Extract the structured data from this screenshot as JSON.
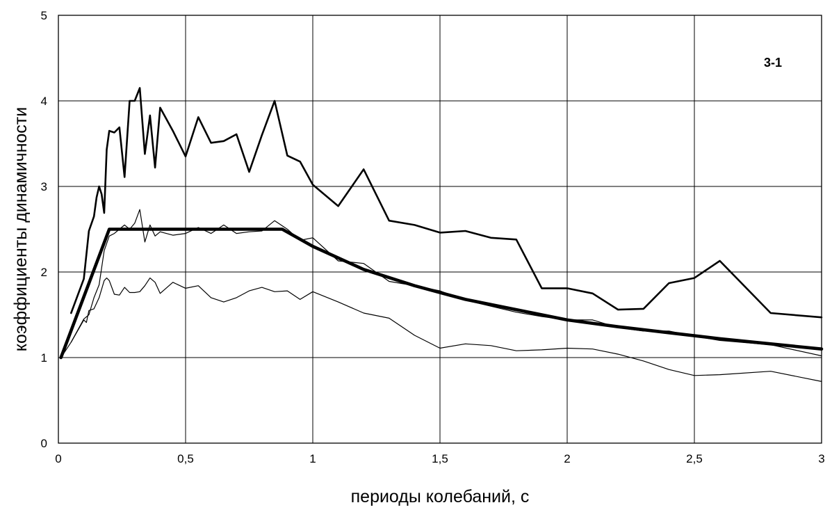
{
  "chart_data": {
    "type": "line",
    "xlabel": "периоды колебаний, с",
    "ylabel": "коэффициенты динамичности",
    "annotation": "3-1",
    "xlim": [
      0,
      3
    ],
    "ylim": [
      0,
      5
    ],
    "x_ticks": [
      {
        "value": 0,
        "label": "0"
      },
      {
        "value": 0.5,
        "label": "0,5"
      },
      {
        "value": 1,
        "label": "1"
      },
      {
        "value": 1.5,
        "label": "1,5"
      },
      {
        "value": 2,
        "label": "2"
      },
      {
        "value": 2.5,
        "label": "2,5"
      },
      {
        "value": 3,
        "label": "3"
      }
    ],
    "y_ticks": [
      {
        "value": 0,
        "label": "0"
      },
      {
        "value": 1,
        "label": "1"
      },
      {
        "value": 2,
        "label": "2"
      },
      {
        "value": 3,
        "label": "3"
      },
      {
        "value": 4,
        "label": "4"
      },
      {
        "value": 5,
        "label": "5"
      }
    ],
    "grid": true,
    "line_color": "#000000",
    "series": [
      {
        "style": "upper",
        "points": [
          [
            0.05,
            1.52
          ],
          [
            0.1,
            1.92
          ],
          [
            0.12,
            2.48
          ],
          [
            0.14,
            2.65
          ],
          [
            0.15,
            2.87
          ],
          [
            0.16,
            3.0
          ],
          [
            0.17,
            2.91
          ],
          [
            0.18,
            2.69
          ],
          [
            0.19,
            3.43
          ],
          [
            0.2,
            3.65
          ],
          [
            0.22,
            3.63
          ],
          [
            0.24,
            3.69
          ],
          [
            0.26,
            3.11
          ],
          [
            0.28,
            4.0
          ],
          [
            0.3,
            4.0
          ],
          [
            0.32,
            4.15
          ],
          [
            0.34,
            3.38
          ],
          [
            0.36,
            3.83
          ],
          [
            0.38,
            3.22
          ],
          [
            0.4,
            3.92
          ],
          [
            0.45,
            3.65
          ],
          [
            0.5,
            3.35
          ],
          [
            0.55,
            3.81
          ],
          [
            0.6,
            3.51
          ],
          [
            0.65,
            3.53
          ],
          [
            0.7,
            3.61
          ],
          [
            0.75,
            3.17
          ],
          [
            0.8,
            3.6
          ],
          [
            0.85,
            4.0
          ],
          [
            0.9,
            3.36
          ],
          [
            0.95,
            3.29
          ],
          [
            1.0,
            3.02
          ],
          [
            1.1,
            2.77
          ],
          [
            1.2,
            3.2
          ],
          [
            1.3,
            2.6
          ],
          [
            1.4,
            2.55
          ],
          [
            1.5,
            2.46
          ],
          [
            1.6,
            2.48
          ],
          [
            1.7,
            2.4
          ],
          [
            1.8,
            2.38
          ],
          [
            1.9,
            1.81
          ],
          [
            2.0,
            1.81
          ],
          [
            2.1,
            1.75
          ],
          [
            2.2,
            1.56
          ],
          [
            2.3,
            1.57
          ],
          [
            2.4,
            1.87
          ],
          [
            2.5,
            1.93
          ],
          [
            2.6,
            2.13
          ],
          [
            2.8,
            1.52
          ],
          [
            3.0,
            1.47
          ]
        ]
      },
      {
        "style": "mean",
        "points": [
          [
            0.01,
            1.0
          ],
          [
            0.05,
            1.18
          ],
          [
            0.1,
            1.45
          ],
          [
            0.12,
            1.5
          ],
          [
            0.14,
            1.7
          ],
          [
            0.16,
            1.85
          ],
          [
            0.18,
            2.25
          ],
          [
            0.2,
            2.42
          ],
          [
            0.22,
            2.45
          ],
          [
            0.24,
            2.5
          ],
          [
            0.26,
            2.55
          ],
          [
            0.28,
            2.5
          ],
          [
            0.3,
            2.57
          ],
          [
            0.32,
            2.73
          ],
          [
            0.34,
            2.35
          ],
          [
            0.36,
            2.55
          ],
          [
            0.38,
            2.42
          ],
          [
            0.4,
            2.47
          ],
          [
            0.45,
            2.43
          ],
          [
            0.5,
            2.45
          ],
          [
            0.55,
            2.52
          ],
          [
            0.6,
            2.45
          ],
          [
            0.65,
            2.55
          ],
          [
            0.7,
            2.45
          ],
          [
            0.75,
            2.47
          ],
          [
            0.8,
            2.48
          ],
          [
            0.85,
            2.6
          ],
          [
            0.9,
            2.5
          ],
          [
            0.95,
            2.37
          ],
          [
            1.0,
            2.4
          ],
          [
            1.1,
            2.13
          ],
          [
            1.2,
            2.1
          ],
          [
            1.3,
            1.89
          ],
          [
            1.4,
            1.84
          ],
          [
            1.5,
            1.78
          ],
          [
            1.6,
            1.67
          ],
          [
            1.7,
            1.6
          ],
          [
            1.8,
            1.53
          ],
          [
            1.9,
            1.48
          ],
          [
            2.0,
            1.44
          ],
          [
            2.1,
            1.44
          ],
          [
            2.2,
            1.35
          ],
          [
            2.3,
            1.31
          ],
          [
            2.4,
            1.31
          ],
          [
            2.5,
            1.25
          ],
          [
            2.6,
            1.2
          ],
          [
            2.8,
            1.15
          ],
          [
            3.0,
            1.02
          ]
        ]
      },
      {
        "style": "lower",
        "points": [
          [
            0.05,
            1.18
          ],
          [
            0.1,
            1.44
          ],
          [
            0.11,
            1.41
          ],
          [
            0.12,
            1.55
          ],
          [
            0.14,
            1.57
          ],
          [
            0.16,
            1.7
          ],
          [
            0.18,
            1.9
          ],
          [
            0.19,
            1.93
          ],
          [
            0.2,
            1.9
          ],
          [
            0.22,
            1.74
          ],
          [
            0.24,
            1.73
          ],
          [
            0.26,
            1.82
          ],
          [
            0.28,
            1.76
          ],
          [
            0.3,
            1.76
          ],
          [
            0.32,
            1.77
          ],
          [
            0.34,
            1.84
          ],
          [
            0.36,
            1.93
          ],
          [
            0.38,
            1.88
          ],
          [
            0.4,
            1.75
          ],
          [
            0.45,
            1.88
          ],
          [
            0.5,
            1.81
          ],
          [
            0.55,
            1.84
          ],
          [
            0.6,
            1.7
          ],
          [
            0.65,
            1.65
          ],
          [
            0.7,
            1.7
          ],
          [
            0.75,
            1.78
          ],
          [
            0.8,
            1.82
          ],
          [
            0.85,
            1.77
          ],
          [
            0.9,
            1.78
          ],
          [
            0.95,
            1.68
          ],
          [
            1.0,
            1.77
          ],
          [
            1.1,
            1.65
          ],
          [
            1.2,
            1.52
          ],
          [
            1.3,
            1.46
          ],
          [
            1.4,
            1.26
          ],
          [
            1.5,
            1.11
          ],
          [
            1.6,
            1.16
          ],
          [
            1.7,
            1.14
          ],
          [
            1.8,
            1.08
          ],
          [
            1.9,
            1.09
          ],
          [
            2.0,
            1.11
          ],
          [
            2.1,
            1.1
          ],
          [
            2.2,
            1.04
          ],
          [
            2.3,
            0.96
          ],
          [
            2.4,
            0.86
          ],
          [
            2.5,
            0.79
          ],
          [
            2.6,
            0.8
          ],
          [
            2.8,
            0.84
          ],
          [
            3.0,
            0.72
          ]
        ]
      },
      {
        "style": "design",
        "points": [
          [
            0.01,
            1.0
          ],
          [
            0.2,
            2.5
          ],
          [
            0.88,
            2.5
          ],
          [
            1.0,
            2.3
          ],
          [
            1.2,
            2.03
          ],
          [
            1.4,
            1.84
          ],
          [
            1.6,
            1.68
          ],
          [
            1.8,
            1.56
          ],
          [
            2.0,
            1.44
          ],
          [
            2.2,
            1.36
          ],
          [
            2.4,
            1.29
          ],
          [
            2.6,
            1.22
          ],
          [
            2.8,
            1.16
          ],
          [
            3.0,
            1.1
          ]
        ]
      }
    ]
  }
}
